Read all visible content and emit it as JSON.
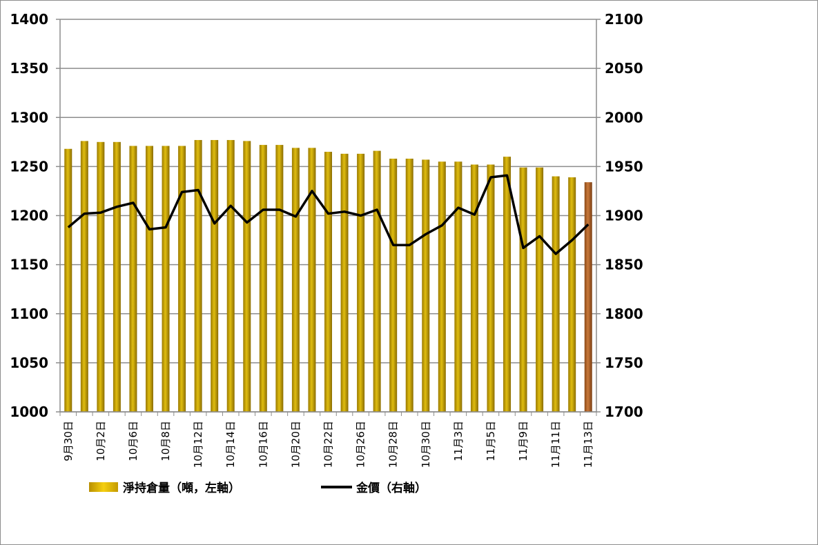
{
  "chart_data": {
    "type": "bar",
    "combo": "bar+line",
    "categories": [
      "9月30日",
      "",
      "10月2日",
      "",
      "10月6日",
      "",
      "10月8日",
      "",
      "10月12日",
      "",
      "10月14日",
      "",
      "10月16日",
      "",
      "10月20日",
      "",
      "10月22日",
      "",
      "10月26日",
      "",
      "10月28日",
      "",
      "10月30日",
      "",
      "11月3日",
      "",
      "11月5日",
      "",
      "11月9日",
      "",
      "11月11日",
      "",
      "11月13日"
    ],
    "series": [
      {
        "name": "淨持倉量（噸，左軸）",
        "axis": "left",
        "type": "bar",
        "values": [
          1268,
          1276,
          1275,
          1275,
          1271,
          1271,
          1271,
          1271,
          1277,
          1277,
          1277,
          1276,
          1272,
          1272,
          1269,
          1269,
          1265,
          1263,
          1263,
          1266,
          1258,
          1258,
          1257,
          1255,
          1255,
          1252,
          1252,
          1260,
          1249,
          1249,
          1240,
          1239,
          1234
        ],
        "color": "#c9a800",
        "last_bar_color": "#b5651d"
      },
      {
        "name": "金價（右軸）",
        "axis": "right",
        "type": "line",
        "values": [
          1888,
          1902,
          1903,
          1909,
          1913,
          1886,
          1888,
          1924,
          1926,
          1892,
          1910,
          1893,
          1906,
          1906,
          1899,
          1925,
          1902,
          1904,
          1900,
          1906,
          1870,
          1870,
          1881,
          1890,
          1908,
          1901,
          1939,
          1941,
          1867,
          1879,
          1861,
          1875,
          1891
        ],
        "color": "#000000"
      }
    ],
    "y_left": {
      "ylim": [
        1000,
        1400
      ],
      "ticks": [
        "1000",
        "1050",
        "1100",
        "1150",
        "1200",
        "1250",
        "1300",
        "1350",
        "1400"
      ]
    },
    "y_right": {
      "ylim": [
        1700,
        2100
      ],
      "ticks": [
        "1700",
        "1750",
        "1800",
        "1850",
        "1900",
        "1950",
        "2000",
        "2050",
        "2100"
      ]
    },
    "grid": true,
    "legend": {
      "placement": "bottom",
      "items": [
        {
          "label": "淨持倉量（噸，左軸）",
          "swatch": "bar"
        },
        {
          "label": "金價（右軸）",
          "swatch": "line"
        }
      ]
    }
  }
}
